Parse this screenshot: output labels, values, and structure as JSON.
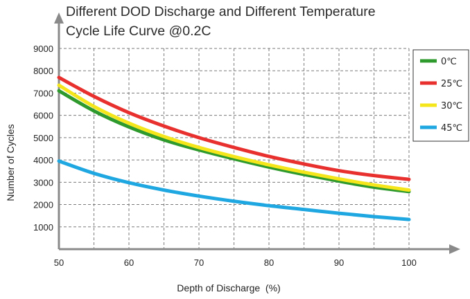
{
  "chart_data": {
    "type": "line",
    "title": [
      "Different DOD Discharge and Different Temperature",
      "Cycle Life Curve @0.2C"
    ],
    "xlabel": "Depth of Discharge  (%)",
    "ylabel": "Number of Cycles",
    "xlim": [
      50,
      100
    ],
    "ylim": [
      0,
      9000
    ],
    "x_ticks": [
      50,
      60,
      70,
      80,
      90,
      100
    ],
    "y_ticks": [
      1000,
      2000,
      3000,
      4000,
      5000,
      6000,
      7000,
      8000,
      9000
    ],
    "grid": true,
    "legend_position": "top-right",
    "x": [
      50,
      55,
      60,
      65,
      70,
      75,
      80,
      85,
      90,
      95,
      100
    ],
    "series": [
      {
        "name": "45℃",
        "color": "#1ea7e1",
        "values": [
          3950,
          3400,
          2980,
          2650,
          2380,
          2150,
          1950,
          1780,
          1610,
          1460,
          1330
        ]
      },
      {
        "name": "0℃",
        "color": "#2e9a2e",
        "values": [
          7100,
          6200,
          5480,
          4900,
          4450,
          4050,
          3680,
          3350,
          3050,
          2780,
          2580
        ]
      },
      {
        "name": "30℃",
        "color": "#f4e61a",
        "values": [
          7350,
          6400,
          5650,
          5050,
          4560,
          4150,
          3780,
          3450,
          3150,
          2880,
          2650
        ]
      },
      {
        "name": "25℃",
        "color": "#e8312f",
        "values": [
          7700,
          6850,
          6120,
          5520,
          5000,
          4560,
          4160,
          3820,
          3520,
          3300,
          3130
        ]
      }
    ],
    "legend_order": [
      "0℃",
      "25℃",
      "30℃",
      "45℃"
    ]
  }
}
